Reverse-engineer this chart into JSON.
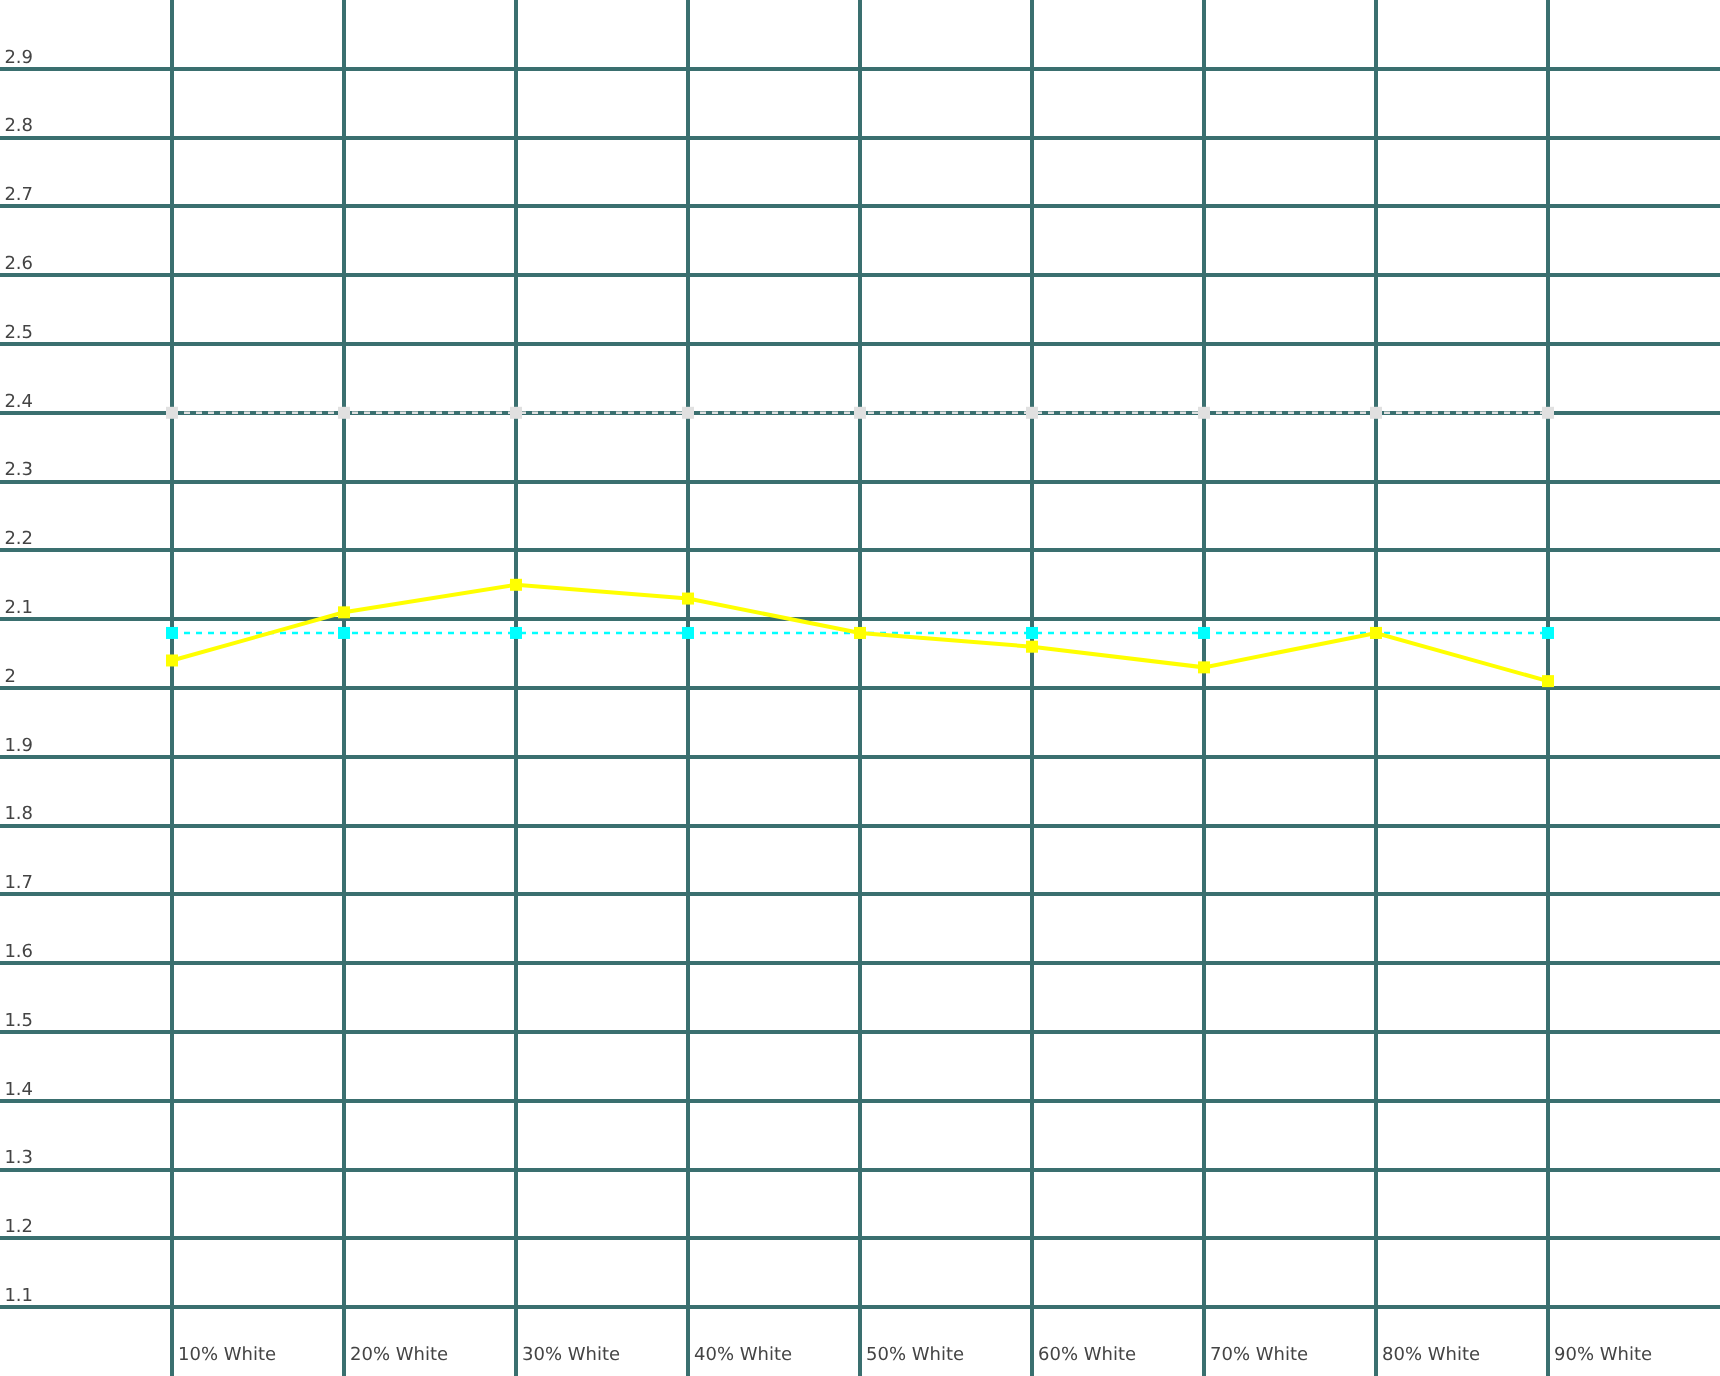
{
  "chart_data": {
    "type": "line",
    "categories": [
      "10% White",
      "20% White",
      "30% White",
      "40% White",
      "50% White",
      "60% White",
      "70% White",
      "80% White",
      "90% White"
    ],
    "series": [
      {
        "color": "#ffff00",
        "line_style": "solid",
        "values": [
          2.04,
          2.11,
          2.15,
          2.13,
          2.08,
          2.06,
          2.03,
          2.08,
          2.01
        ]
      },
      {
        "color": "#00ffff",
        "line_style": "dotted",
        "values": [
          2.08,
          2.08,
          2.08,
          2.08,
          2.08,
          2.08,
          2.08,
          2.08,
          2.08
        ]
      },
      {
        "color": "#e0e0e0",
        "line_style": "dotted",
        "values": [
          2.4,
          2.4,
          2.4,
          2.4,
          2.4,
          2.4,
          2.4,
          2.4,
          2.4
        ]
      }
    ],
    "ylim": [
      1,
      3
    ],
    "yticks": [
      1.1,
      1.2,
      1.3,
      1.4,
      1.5,
      1.6,
      1.7,
      1.8,
      1.9,
      2,
      2.1,
      2.2,
      2.3,
      2.4,
      2.5,
      2.6,
      2.7,
      2.8,
      2.9
    ],
    "grid": true,
    "marker": "square"
  }
}
